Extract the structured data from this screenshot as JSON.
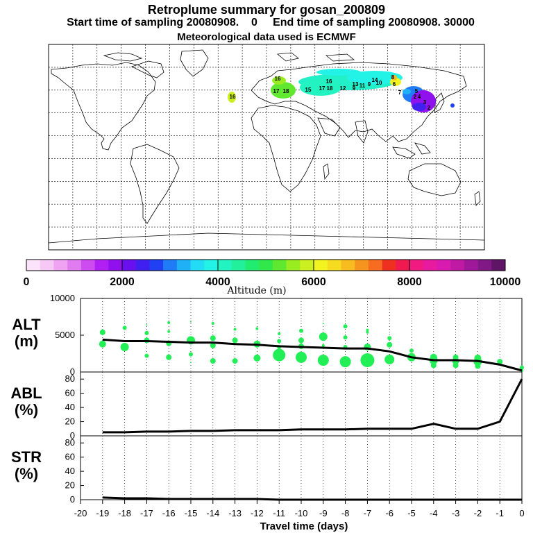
{
  "title": {
    "line1": "Retroplume summary for gosan_200809",
    "line2": "Start time of sampling 20080908.    0     End time of sampling 20080908. 30000",
    "line3": "Meteorological data used is ECMWF"
  },
  "colors": {
    "marker": "#22ee55",
    "line": "#000000",
    "colorbar": [
      "#fbe3fb",
      "#f6c8f6",
      "#f0a3f3",
      "#e07cf0",
      "#cc4cf0",
      "#b020f3",
      "#9010ee",
      "#6a10ee",
      "#4020ee",
      "#2040f3",
      "#1f7cf6",
      "#20b0f6",
      "#22dcf6",
      "#22f3e6",
      "#22f3c0",
      "#22f09a",
      "#22ec70",
      "#30e84a",
      "#60e830",
      "#98ec20",
      "#cbef20",
      "#f3f320",
      "#f6dc20",
      "#f6bc20",
      "#f69420",
      "#f66c20",
      "#ee3020",
      "#f01a50",
      "#f01a80",
      "#e81aa0",
      "#d81ab0",
      "#c01aa4",
      "#a0189a",
      "#801886",
      "#601466"
    ]
  },
  "colorbar": {
    "labels": [
      "0",
      "2000",
      "4000",
      "6000",
      "8000",
      "10000"
    ],
    "title": "Altitude (m)"
  },
  "map": {
    "plume_labels": [
      "16",
      "16",
      "17",
      "18",
      "16",
      "15",
      "17",
      "18",
      "12",
      "13",
      "14",
      "9",
      "10",
      "11",
      "9",
      "8",
      "6",
      "2",
      "7",
      "5",
      "4",
      "3",
      "2"
    ]
  },
  "chart_data": [
    {
      "type": "scatter",
      "panel_label": [
        "ALT",
        "(m)"
      ],
      "ylim": [
        0,
        10000
      ],
      "yticks": [
        "0",
        "5000",
        "10000"
      ],
      "mean_line": {
        "x": [
          -19,
          -18,
          -17,
          -16,
          -15,
          -14,
          -13,
          -12,
          -11,
          -10,
          -9,
          -8,
          -7,
          -6,
          -5,
          -4,
          -3,
          -2,
          -1,
          0
        ],
        "y": [
          4400,
          4200,
          4200,
          4100,
          4000,
          4000,
          3800,
          3700,
          3500,
          3400,
          3300,
          3200,
          3200,
          2800,
          2000,
          1600,
          1600,
          1500,
          1000,
          200
        ]
      },
      "points": [
        {
          "x": -19,
          "y": 5400,
          "s": 4
        },
        {
          "x": -19,
          "y": 3800,
          "s": 5
        },
        {
          "x": -18,
          "y": 6000,
          "s": 3
        },
        {
          "x": -18,
          "y": 3400,
          "s": 6
        },
        {
          "x": -17,
          "y": 6400,
          "s": 1
        },
        {
          "x": -17,
          "y": 5300,
          "s": 3
        },
        {
          "x": -17,
          "y": 4300,
          "s": 4
        },
        {
          "x": -17,
          "y": 2200,
          "s": 3
        },
        {
          "x": -16,
          "y": 6700,
          "s": 2
        },
        {
          "x": -16,
          "y": 5500,
          "s": 2
        },
        {
          "x": -16,
          "y": 3900,
          "s": 4
        },
        {
          "x": -16,
          "y": 2000,
          "s": 4
        },
        {
          "x": -15,
          "y": 6800,
          "s": 1
        },
        {
          "x": -15,
          "y": 4300,
          "s": 6
        },
        {
          "x": -15,
          "y": 2400,
          "s": 3
        },
        {
          "x": -15,
          "y": 1300,
          "s": 1
        },
        {
          "x": -14,
          "y": 6600,
          "s": 2
        },
        {
          "x": -14,
          "y": 4600,
          "s": 4
        },
        {
          "x": -14,
          "y": 3600,
          "s": 4
        },
        {
          "x": -14,
          "y": 1500,
          "s": 4
        },
        {
          "x": -13,
          "y": 5800,
          "s": 2
        },
        {
          "x": -13,
          "y": 4300,
          "s": 4
        },
        {
          "x": -13,
          "y": 1500,
          "s": 4
        },
        {
          "x": -12,
          "y": 5900,
          "s": 2
        },
        {
          "x": -12,
          "y": 3800,
          "s": 5
        },
        {
          "x": -12,
          "y": 1900,
          "s": 5
        },
        {
          "x": -11,
          "y": 5200,
          "s": 2
        },
        {
          "x": -11,
          "y": 4200,
          "s": 3
        },
        {
          "x": -11,
          "y": 3400,
          "s": 3
        },
        {
          "x": -11,
          "y": 2300,
          "s": 9
        },
        {
          "x": -10,
          "y": 5600,
          "s": 3
        },
        {
          "x": -10,
          "y": 4300,
          "s": 4
        },
        {
          "x": -10,
          "y": 3500,
          "s": 4
        },
        {
          "x": -10,
          "y": 2000,
          "s": 8
        },
        {
          "x": -9,
          "y": 6600,
          "s": 1
        },
        {
          "x": -9,
          "y": 4800,
          "s": 6
        },
        {
          "x": -9,
          "y": 3600,
          "s": 2
        },
        {
          "x": -9,
          "y": 1600,
          "s": 8
        },
        {
          "x": -8,
          "y": 6200,
          "s": 3
        },
        {
          "x": -8,
          "y": 4700,
          "s": 3
        },
        {
          "x": -8,
          "y": 3400,
          "s": 3
        },
        {
          "x": -8,
          "y": 1400,
          "s": 8
        },
        {
          "x": -7,
          "y": 5700,
          "s": 2
        },
        {
          "x": -7,
          "y": 5400,
          "s": 2
        },
        {
          "x": -7,
          "y": 3400,
          "s": 5
        },
        {
          "x": -7,
          "y": 1600,
          "s": 10
        },
        {
          "x": -6,
          "y": 4600,
          "s": 3
        },
        {
          "x": -6,
          "y": 3700,
          "s": 4
        },
        {
          "x": -6,
          "y": 1700,
          "s": 7
        },
        {
          "x": -5,
          "y": 2900,
          "s": 3
        },
        {
          "x": -5,
          "y": 2000,
          "s": 6
        },
        {
          "x": -4,
          "y": 2000,
          "s": 5
        },
        {
          "x": -4,
          "y": 1600,
          "s": 6
        },
        {
          "x": -4,
          "y": 900,
          "s": 4
        },
        {
          "x": -3,
          "y": 2000,
          "s": 4
        },
        {
          "x": -3,
          "y": 1500,
          "s": 5
        },
        {
          "x": -3,
          "y": 900,
          "s": 4
        },
        {
          "x": -2,
          "y": 1900,
          "s": 5
        },
        {
          "x": -2,
          "y": 1400,
          "s": 6
        },
        {
          "x": -2,
          "y": 800,
          "s": 4
        },
        {
          "x": -1,
          "y": 1400,
          "s": 4
        },
        {
          "x": -1,
          "y": 1100,
          "s": 2
        },
        {
          "x": 0,
          "y": 600,
          "s": 3
        },
        {
          "x": 0,
          "y": 200,
          "s": 2
        }
      ]
    },
    {
      "type": "line",
      "panel_label": [
        "ABL",
        "(%)"
      ],
      "ylim": [
        0,
        90
      ],
      "yticks": [
        "0",
        "20",
        "40",
        "60",
        "80"
      ],
      "x": [
        -19,
        -18,
        -17,
        -16,
        -15,
        -14,
        -13,
        -12,
        -11,
        -10,
        -9,
        -8,
        -7,
        -6,
        -5,
        -4,
        -3,
        -2,
        -1,
        0
      ],
      "y": [
        5,
        5,
        6,
        6,
        7,
        7,
        8,
        8,
        8,
        9,
        9,
        9,
        10,
        10,
        10,
        17,
        10,
        10,
        20,
        80
      ]
    },
    {
      "type": "line",
      "panel_label": [
        "STR",
        "(%)"
      ],
      "ylim": [
        0,
        90
      ],
      "yticks": [
        "0",
        "20",
        "40",
        "60",
        "80"
      ],
      "x": [
        -19,
        -18,
        -17,
        -16,
        -15,
        -14,
        -13,
        -12,
        -11,
        -10,
        -9,
        -8,
        -7,
        -6,
        -5,
        -4,
        -3,
        -2,
        -1,
        0
      ],
      "y": [
        3,
        2,
        2,
        1,
        1,
        1,
        1,
        1,
        0,
        0,
        0,
        0,
        0,
        0,
        0,
        0,
        0,
        0,
        0,
        0
      ]
    }
  ],
  "xaxis": {
    "ticks": [
      "-20",
      "-19",
      "-18",
      "-17",
      "-16",
      "-15",
      "-14",
      "-13",
      "-12",
      "-11",
      "-10",
      "-9",
      "-8",
      "-7",
      "-6",
      "-5",
      "-4",
      "-3",
      "-2",
      "-1",
      "0"
    ],
    "label": "Travel time (days)",
    "xlim": [
      -20,
      0
    ]
  }
}
